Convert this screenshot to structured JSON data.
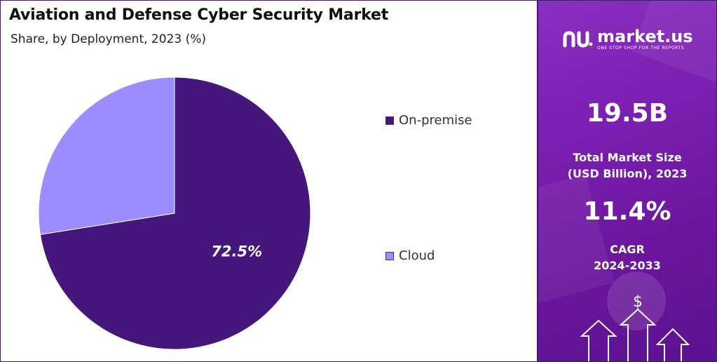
{
  "chart_data": {
    "type": "pie",
    "title": "Aviation and Defense Cyber Security Market",
    "subtitle": "Share, by Deployment, 2023 (%)",
    "slices": [
      {
        "label": "On-premise",
        "value": 72.5,
        "color": "#45167b",
        "data_label": "72.5%"
      },
      {
        "label": "Cloud",
        "value": 27.5,
        "color": "#9b8cff",
        "data_label": ""
      }
    ],
    "legend": [
      "On-premise",
      "Cloud"
    ],
    "legend_position": "right"
  },
  "brand": {
    "name": "market.us",
    "tagline": "ONE STOP SHOP FOR THE REPORTS"
  },
  "stats": {
    "market_size_value": "19.5B",
    "market_size_label_line1": "Total Market Size",
    "market_size_label_line2": "(USD Billion), 2023",
    "cagr_value": "11.4%",
    "cagr_label_line1": "CAGR",
    "cagr_label_line2": "2024-2033"
  },
  "colors": {
    "panel_accent": "#7a1fb0",
    "border": "#3b1a6e"
  },
  "icons": [
    "market-us-logo-icon",
    "dollar-icon",
    "up-arrow-icon"
  ]
}
